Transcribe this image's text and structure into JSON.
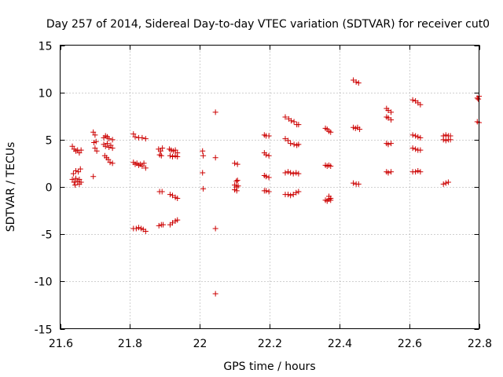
{
  "chart_data": {
    "type": "scatter",
    "title": "Day 257 of 2014, Sidereal Day-to-day VTEC variation (SDTVAR) for receiver cut0",
    "xlabel": "GPS time / hours",
    "ylabel": "SDTVAR / TECUs",
    "xlim": [
      21.6,
      22.8
    ],
    "ylim": [
      -15,
      15
    ],
    "xticks": [
      21.6,
      21.8,
      22,
      22.2,
      22.4,
      22.6,
      22.8
    ],
    "xtick_labels": [
      "21.6",
      "21.8",
      "22",
      "22.2",
      "22.4",
      "22.6",
      "22.8"
    ],
    "yticks": [
      -15,
      -10,
      -5,
      0,
      5,
      10,
      15
    ],
    "ytick_labels": [
      "-15",
      "-10",
      "-5",
      "0",
      "5",
      "10",
      "15"
    ],
    "grid": true,
    "marker": "+",
    "color": "#cc0000",
    "series": [
      {
        "name": "SDTVAR",
        "points": [
          [
            21.635,
            4.3
          ],
          [
            21.64,
            4.0
          ],
          [
            21.645,
            3.8
          ],
          [
            21.65,
            3.9
          ],
          [
            21.655,
            3.6
          ],
          [
            21.66,
            3.9
          ],
          [
            21.638,
            1.4
          ],
          [
            21.645,
            1.7
          ],
          [
            21.652,
            1.6
          ],
          [
            21.658,
            1.9
          ],
          [
            21.635,
            0.8
          ],
          [
            21.64,
            0.5
          ],
          [
            21.645,
            0.9
          ],
          [
            21.65,
            0.6
          ],
          [
            21.655,
            0.8
          ],
          [
            21.66,
            0.5
          ],
          [
            21.643,
            0.2
          ],
          [
            21.655,
            0.3
          ],
          [
            21.695,
            5.8
          ],
          [
            21.7,
            5.5
          ],
          [
            21.703,
            4.8
          ],
          [
            21.697,
            4.7
          ],
          [
            21.7,
            4.1
          ],
          [
            21.705,
            3.8
          ],
          [
            21.695,
            1.1
          ],
          [
            21.725,
            5.2
          ],
          [
            21.73,
            5.4
          ],
          [
            21.735,
            5.3
          ],
          [
            21.74,
            5.1
          ],
          [
            21.75,
            5.0
          ],
          [
            21.725,
            4.5
          ],
          [
            21.73,
            4.3
          ],
          [
            21.735,
            4.6
          ],
          [
            21.74,
            4.2
          ],
          [
            21.745,
            4.4
          ],
          [
            21.75,
            4.1
          ],
          [
            21.728,
            3.3
          ],
          [
            21.733,
            3.1
          ],
          [
            21.738,
            2.9
          ],
          [
            21.743,
            2.6
          ],
          [
            21.75,
            2.5
          ],
          [
            21.81,
            5.6
          ],
          [
            21.815,
            5.3
          ],
          [
            21.825,
            5.2
          ],
          [
            21.835,
            5.2
          ],
          [
            21.845,
            5.1
          ],
          [
            21.81,
            2.6
          ],
          [
            21.815,
            2.4
          ],
          [
            21.82,
            2.5
          ],
          [
            21.825,
            2.3
          ],
          [
            21.83,
            2.4
          ],
          [
            21.835,
            2.2
          ],
          [
            21.84,
            2.5
          ],
          [
            21.845,
            2.0
          ],
          [
            21.81,
            -4.4
          ],
          [
            21.818,
            -4.4
          ],
          [
            21.825,
            -4.3
          ],
          [
            21.832,
            -4.4
          ],
          [
            21.838,
            -4.5
          ],
          [
            21.845,
            -4.7
          ],
          [
            21.882,
            4.0
          ],
          [
            21.888,
            3.8
          ],
          [
            21.893,
            4.1
          ],
          [
            21.885,
            3.4
          ],
          [
            21.89,
            3.3
          ],
          [
            21.885,
            -0.5
          ],
          [
            21.892,
            -0.5
          ],
          [
            21.883,
            -4.1
          ],
          [
            21.89,
            -4.0
          ],
          [
            21.895,
            -4.0
          ],
          [
            21.913,
            4.0
          ],
          [
            21.918,
            3.9
          ],
          [
            21.924,
            3.8
          ],
          [
            21.93,
            3.9
          ],
          [
            21.936,
            3.6
          ],
          [
            21.915,
            3.3
          ],
          [
            21.922,
            3.2
          ],
          [
            21.93,
            3.3
          ],
          [
            21.936,
            3.2
          ],
          [
            21.915,
            -0.8
          ],
          [
            21.922,
            -0.9
          ],
          [
            21.93,
            -1.1
          ],
          [
            21.936,
            -1.2
          ],
          [
            21.915,
            -4.0
          ],
          [
            21.922,
            -3.8
          ],
          [
            21.93,
            -3.6
          ],
          [
            21.936,
            -3.5
          ],
          [
            22.008,
            3.8
          ],
          [
            22.01,
            3.3
          ],
          [
            22.008,
            1.5
          ],
          [
            22.01,
            -0.2
          ],
          [
            22.045,
            7.9
          ],
          [
            22.045,
            3.1
          ],
          [
            22.045,
            -4.4
          ],
          [
            22.045,
            -11.3
          ],
          [
            22.1,
            2.5
          ],
          [
            22.108,
            2.4
          ],
          [
            22.105,
            0.6
          ],
          [
            22.108,
            0.7
          ],
          [
            22.1,
            0.2
          ],
          [
            22.105,
            0.0
          ],
          [
            22.11,
            0.1
          ],
          [
            22.1,
            -0.3
          ],
          [
            22.106,
            -0.4
          ],
          [
            22.185,
            5.5
          ],
          [
            22.19,
            5.4
          ],
          [
            22.198,
            5.4
          ],
          [
            22.185,
            3.6
          ],
          [
            22.19,
            3.4
          ],
          [
            22.198,
            3.3
          ],
          [
            22.185,
            1.2
          ],
          [
            22.19,
            1.1
          ],
          [
            22.198,
            1.0
          ],
          [
            22.185,
            -0.4
          ],
          [
            22.19,
            -0.4
          ],
          [
            22.198,
            -0.5
          ],
          [
            22.245,
            7.4
          ],
          [
            22.255,
            7.2
          ],
          [
            22.262,
            7.0
          ],
          [
            22.27,
            6.9
          ],
          [
            22.278,
            6.6
          ],
          [
            22.283,
            6.6
          ],
          [
            22.245,
            5.1
          ],
          [
            22.253,
            4.9
          ],
          [
            22.26,
            4.6
          ],
          [
            22.27,
            4.5
          ],
          [
            22.278,
            4.4
          ],
          [
            22.283,
            4.5
          ],
          [
            22.245,
            1.5
          ],
          [
            22.253,
            1.6
          ],
          [
            22.26,
            1.5
          ],
          [
            22.268,
            1.4
          ],
          [
            22.276,
            1.5
          ],
          [
            22.283,
            1.4
          ],
          [
            22.245,
            -0.8
          ],
          [
            22.253,
            -0.8
          ],
          [
            22.26,
            -0.9
          ],
          [
            22.268,
            -0.8
          ],
          [
            22.276,
            -0.6
          ],
          [
            22.283,
            -0.5
          ],
          [
            22.36,
            6.2
          ],
          [
            22.365,
            6.1
          ],
          [
            22.37,
            5.9
          ],
          [
            22.375,
            5.8
          ],
          [
            22.36,
            2.3
          ],
          [
            22.365,
            2.2
          ],
          [
            22.37,
            2.3
          ],
          [
            22.375,
            2.2
          ],
          [
            22.36,
            -1.4
          ],
          [
            22.365,
            -1.5
          ],
          [
            22.37,
            -1.3
          ],
          [
            22.375,
            -1.2
          ],
          [
            22.37,
            -1.0
          ],
          [
            22.375,
            -1.4
          ],
          [
            22.44,
            11.3
          ],
          [
            22.448,
            11.1
          ],
          [
            22.455,
            11.0
          ],
          [
            22.44,
            6.3
          ],
          [
            22.446,
            6.2
          ],
          [
            22.452,
            6.3
          ],
          [
            22.458,
            6.1
          ],
          [
            22.44,
            0.4
          ],
          [
            22.448,
            0.3
          ],
          [
            22.455,
            0.3
          ],
          [
            22.535,
            8.3
          ],
          [
            22.54,
            8.1
          ],
          [
            22.548,
            7.9
          ],
          [
            22.535,
            7.4
          ],
          [
            22.54,
            7.3
          ],
          [
            22.548,
            7.1
          ],
          [
            22.535,
            4.6
          ],
          [
            22.54,
            4.5
          ],
          [
            22.548,
            4.6
          ],
          [
            22.535,
            1.6
          ],
          [
            22.54,
            1.5
          ],
          [
            22.548,
            1.6
          ],
          [
            22.61,
            9.2
          ],
          [
            22.618,
            9.1
          ],
          [
            22.625,
            8.9
          ],
          [
            22.632,
            8.7
          ],
          [
            22.61,
            5.5
          ],
          [
            22.618,
            5.4
          ],
          [
            22.625,
            5.3
          ],
          [
            22.632,
            5.2
          ],
          [
            22.61,
            4.1
          ],
          [
            22.618,
            4.0
          ],
          [
            22.625,
            3.9
          ],
          [
            22.632,
            3.9
          ],
          [
            22.61,
            1.6
          ],
          [
            22.618,
            1.6
          ],
          [
            22.625,
            1.7
          ],
          [
            22.632,
            1.6
          ],
          [
            22.698,
            5.4
          ],
          [
            22.705,
            5.5
          ],
          [
            22.712,
            5.4
          ],
          [
            22.718,
            5.4
          ],
          [
            22.698,
            5.0
          ],
          [
            22.705,
            4.9
          ],
          [
            22.712,
            5.0
          ],
          [
            22.718,
            5.0
          ],
          [
            22.698,
            0.3
          ],
          [
            22.705,
            0.4
          ],
          [
            22.712,
            0.5
          ],
          [
            22.795,
            9.4
          ],
          [
            22.8,
            9.6
          ],
          [
            22.798,
            9.3
          ],
          [
            22.795,
            6.9
          ],
          [
            22.8,
            6.8
          ]
        ]
      }
    ]
  }
}
